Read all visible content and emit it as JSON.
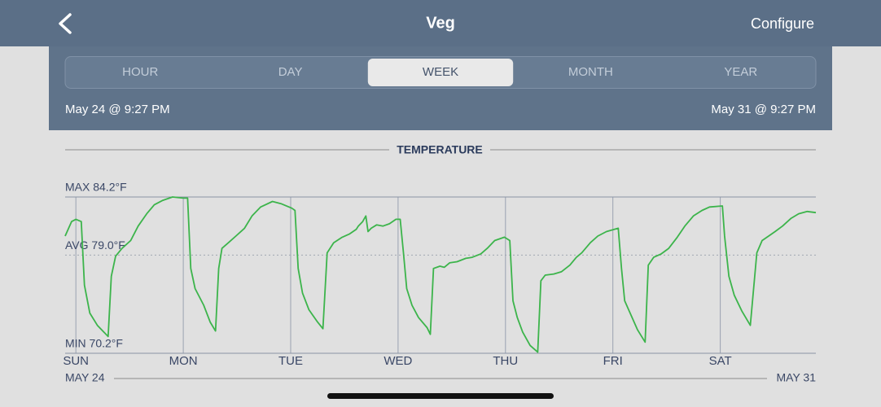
{
  "header": {
    "title": "Veg",
    "action": "Configure"
  },
  "tabs": {
    "items": [
      "HOUR",
      "DAY",
      "WEEK",
      "MONTH",
      "YEAR"
    ],
    "selected": 2
  },
  "range": {
    "start": "May 24 @ 9:27 PM",
    "end": "May 31 @ 9:27 PM"
  },
  "chart_data": {
    "type": "line",
    "title": "TEMPERATURE",
    "color": "#3cb44b",
    "x": [
      -0.1,
      -0.04,
      0,
      0.05,
      0.08,
      0.13,
      0.2,
      0.3,
      0.33,
      0.37,
      0.43,
      0.51,
      0.58,
      0.66,
      0.73,
      0.81,
      0.9,
      1.0,
      1.04,
      1.07,
      1.11,
      1.19,
      1.25,
      1.3,
      1.33,
      1.36,
      1.42,
      1.49,
      1.57,
      1.64,
      1.72,
      1.83,
      1.91,
      2.01,
      2.04,
      2.07,
      2.11,
      2.17,
      2.25,
      2.3,
      2.34,
      2.4,
      2.48,
      2.55,
      2.61,
      2.63,
      2.67,
      2.7,
      2.72,
      2.75,
      2.8,
      2.86,
      2.92,
      2.98,
      3.02,
      3.05,
      3.08,
      3.13,
      3.19,
      3.27,
      3.3,
      3.33,
      3.39,
      3.43,
      3.48,
      3.55,
      3.63,
      3.69,
      3.77,
      3.83,
      3.9,
      3.99,
      4.04,
      4.07,
      4.11,
      4.16,
      4.23,
      4.3,
      4.33,
      4.37,
      4.45,
      4.52,
      4.6,
      4.66,
      4.71,
      4.79,
      4.86,
      4.94,
      5.05,
      5.08,
      5.11,
      5.17,
      5.23,
      5.3,
      5.33,
      5.38,
      5.45,
      5.52,
      5.6,
      5.67,
      5.75,
      5.83,
      5.9,
      6.02,
      6.04,
      6.08,
      6.13,
      6.2,
      6.28,
      6.34,
      6.39,
      6.45,
      6.51,
      6.58,
      6.66,
      6.73,
      6.81,
      6.89
    ],
    "values": [
      80.7,
      82.0,
      82.2,
      82.0,
      76.3,
      73.8,
      72.7,
      71.7,
      77.1,
      78.9,
      79.6,
      80.3,
      81.6,
      82.7,
      83.5,
      83.9,
      84.2,
      84.1,
      84.1,
      77.8,
      76.0,
      74.5,
      73.0,
      72.2,
      77.8,
      79.6,
      80.1,
      80.7,
      81.4,
      82.5,
      83.3,
      83.8,
      83.6,
      83.2,
      83.0,
      77.8,
      75.6,
      74.1,
      73.0,
      72.4,
      79.2,
      80.1,
      80.6,
      80.9,
      81.3,
      81.6,
      82.0,
      82.5,
      81.1,
      81.4,
      81.7,
      81.6,
      81.8,
      82.2,
      82.2,
      79.2,
      76.0,
      74.5,
      73.4,
      72.5,
      71.9,
      77.8,
      78.0,
      77.9,
      78.3,
      78.4,
      78.7,
      78.8,
      79.1,
      79.6,
      80.3,
      80.6,
      80.3,
      74.9,
      73.4,
      72.1,
      70.9,
      70.3,
      76.7,
      77.2,
      77.3,
      77.5,
      78.1,
      78.8,
      79.2,
      80.1,
      80.7,
      81.1,
      81.4,
      77.8,
      74.9,
      73.6,
      72.3,
      71.2,
      78.1,
      78.8,
      79.1,
      79.6,
      80.6,
      81.6,
      82.5,
      83.0,
      83.3,
      83.4,
      80.7,
      77.1,
      75.4,
      74.0,
      72.7,
      79.2,
      80.3,
      80.7,
      81.1,
      81.6,
      82.3,
      82.7,
      82.9,
      82.8
    ],
    "xlim": [
      -0.1,
      6.89
    ],
    "xticks": [
      {
        "value": 0,
        "label": "SUN"
      },
      {
        "value": 1,
        "label": "MON"
      },
      {
        "value": 2,
        "label": "TUE"
      },
      {
        "value": 3,
        "label": "WED"
      },
      {
        "value": 4,
        "label": "THU"
      },
      {
        "value": 5,
        "label": "FRI"
      },
      {
        "value": 6,
        "label": "SAT"
      }
    ],
    "ylim": [
      70.2,
      84.2
    ],
    "yticks": [
      {
        "value": 84.2,
        "label": "MAX 84.2°F"
      },
      {
        "value": 79.0,
        "label": "AVG 79.0°F"
      },
      {
        "value": 70.2,
        "label": "MIN 70.2°F"
      }
    ],
    "x_start_label": "MAY 24",
    "x_end_label": "MAY 31"
  }
}
